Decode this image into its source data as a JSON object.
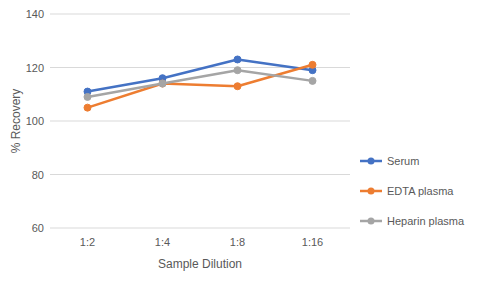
{
  "chart_data": {
    "type": "line",
    "x_label": "Sample Dilution",
    "y_label": "% Recovery",
    "categories": [
      "1:2",
      "1:4",
      "1:8",
      "1:16"
    ],
    "series": [
      {
        "name": "Serum",
        "color": "#4472c4",
        "values": [
          111,
          116,
          123,
          119
        ]
      },
      {
        "name": "EDTA plasma",
        "color": "#ed7d31",
        "values": [
          105,
          114,
          113,
          121
        ]
      },
      {
        "name": "Heparin plasma",
        "color": "#a5a5a5",
        "values": [
          109,
          114,
          119,
          115
        ]
      }
    ],
    "ylim": [
      60,
      140
    ],
    "yticks": [
      60,
      80,
      100,
      120,
      140
    ],
    "grid": true,
    "legend": "right",
    "marker": "circle"
  }
}
